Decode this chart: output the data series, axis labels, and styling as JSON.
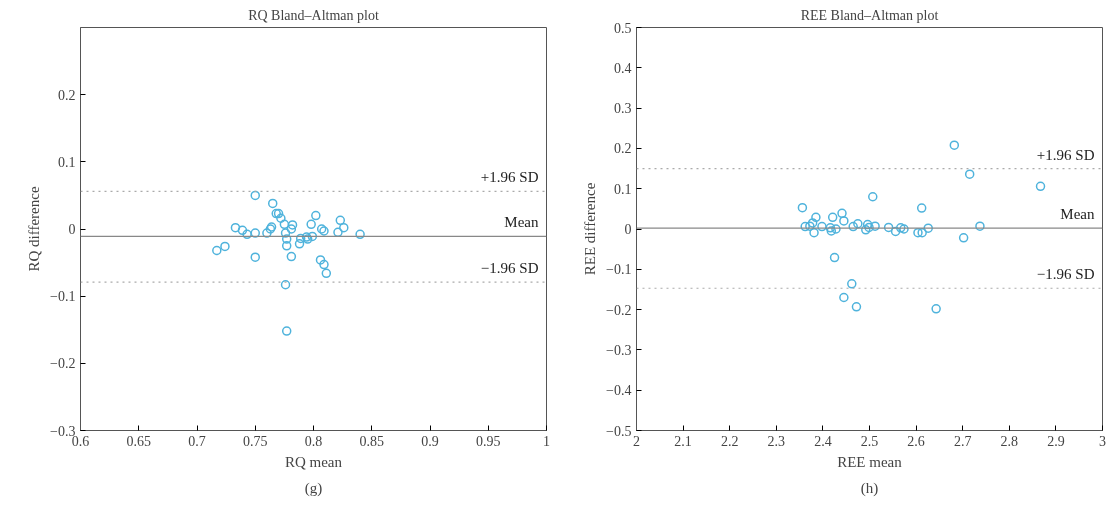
{
  "chart_data": [
    {
      "type": "scatter",
      "title": "RQ Bland–Altman plot",
      "xlabel": "RQ mean",
      "ylabel": "RQ difference",
      "annotations": [
        "(g)"
      ],
      "color": "#4fb3dc",
      "marker": "circle",
      "grid": false,
      "legend": false,
      "x": [
        0.75,
        0.765,
        0.768,
        0.77,
        0.772,
        0.775,
        0.782,
        0.781,
        0.764,
        0.763,
        0.76,
        0.733,
        0.739,
        0.743,
        0.75,
        0.776,
        0.777,
        0.777,
        0.724,
        0.717,
        0.75,
        0.781,
        0.788,
        0.789,
        0.794,
        0.795,
        0.799,
        0.798,
        0.802,
        0.807,
        0.809,
        0.806,
        0.809,
        0.811,
        0.776,
        0.777,
        0.823,
        0.826,
        0.821,
        0.84
      ],
      "values": [
        0.05,
        0.038,
        0.023,
        0.023,
        0.016,
        0.007,
        0.006,
        0.0,
        0.003,
        0.0,
        -0.006,
        0.002,
        -0.002,
        -0.008,
        -0.006,
        -0.006,
        -0.015,
        -0.025,
        -0.026,
        -0.032,
        -0.042,
        -0.041,
        -0.022,
        -0.014,
        -0.012,
        -0.015,
        -0.011,
        0.007,
        0.02,
        0.0,
        -0.003,
        -0.046,
        -0.053,
        -0.066,
        -0.083,
        -0.152,
        0.013,
        0.002,
        -0.005,
        -0.008
      ],
      "xlim": [
        0.6,
        1
      ],
      "xticks": [
        0.6,
        0.65,
        0.7,
        0.75,
        0.8,
        0.85,
        0.9,
        0.95,
        1
      ],
      "ylim": [
        -0.3,
        0.3
      ],
      "yticks": [
        -0.3,
        -0.2,
        -0.1,
        0,
        0.1,
        0.2
      ],
      "ref_lines": [
        {
          "axis": "y",
          "value": 0.056,
          "label": "+1.96 SD",
          "color": "#aaaaaa",
          "line_style": "dotted"
        },
        {
          "axis": "y",
          "value": -0.011,
          "label": "Mean",
          "color": "#888888",
          "line_style": "solid"
        },
        {
          "axis": "y",
          "value": -0.079,
          "label": "−1.96 SD",
          "color": "#aaaaaa",
          "line_style": "dotted"
        }
      ]
    },
    {
      "type": "scatter",
      "title": "REE Bland–Altman plot",
      "xlabel": "REE mean",
      "ylabel": "REE difference",
      "annotations": [
        "(h)"
      ],
      "color": "#4fb3dc",
      "marker": "circle",
      "grid": false,
      "legend": false,
      "x": [
        2.682,
        2.715,
        2.867,
        2.737,
        2.702,
        2.643,
        2.612,
        2.604,
        2.613,
        2.626,
        2.574,
        2.567,
        2.556,
        2.541,
        2.507,
        2.512,
        2.496,
        2.492,
        2.499,
        2.475,
        2.465,
        2.445,
        2.441,
        2.421,
        2.416,
        2.418,
        2.428,
        2.425,
        2.462,
        2.445,
        2.472,
        2.398,
        2.385,
        2.378,
        2.372,
        2.362,
        2.381,
        2.356
      ],
      "values": [
        0.208,
        0.136,
        0.106,
        0.007,
        -0.022,
        -0.198,
        0.052,
        -0.009,
        -0.009,
        0.002,
        0.0,
        0.003,
        -0.006,
        0.004,
        0.08,
        0.007,
        0.011,
        -0.002,
        0.004,
        0.013,
        0.006,
        0.02,
        0.039,
        0.029,
        0.003,
        -0.005,
        0.0,
        -0.071,
        -0.136,
        -0.17,
        -0.193,
        0.006,
        0.029,
        0.015,
        0.007,
        0.006,
        -0.009,
        0.053
      ],
      "xlim": [
        2,
        3
      ],
      "xticks": [
        2,
        2.1,
        2.2,
        2.3,
        2.4,
        2.5,
        2.6,
        2.7,
        2.8,
        2.9,
        3
      ],
      "ylim": [
        -0.5,
        0.5
      ],
      "yticks": [
        -0.5,
        -0.4,
        -0.3,
        -0.2,
        -0.1,
        0,
        0.1,
        0.2,
        0.3,
        0.4,
        0.5
      ],
      "ref_lines": [
        {
          "axis": "y",
          "value": 0.15,
          "label": "+1.96 SD",
          "color": "#aaaaaa",
          "line_style": "dotted"
        },
        {
          "axis": "y",
          "value": 0.002,
          "label": "Mean",
          "color": "#888888",
          "line_style": "solid"
        },
        {
          "axis": "y",
          "value": -0.147,
          "label": "−1.96 SD",
          "color": "#aaaaaa",
          "line_style": "dotted"
        }
      ]
    }
  ]
}
